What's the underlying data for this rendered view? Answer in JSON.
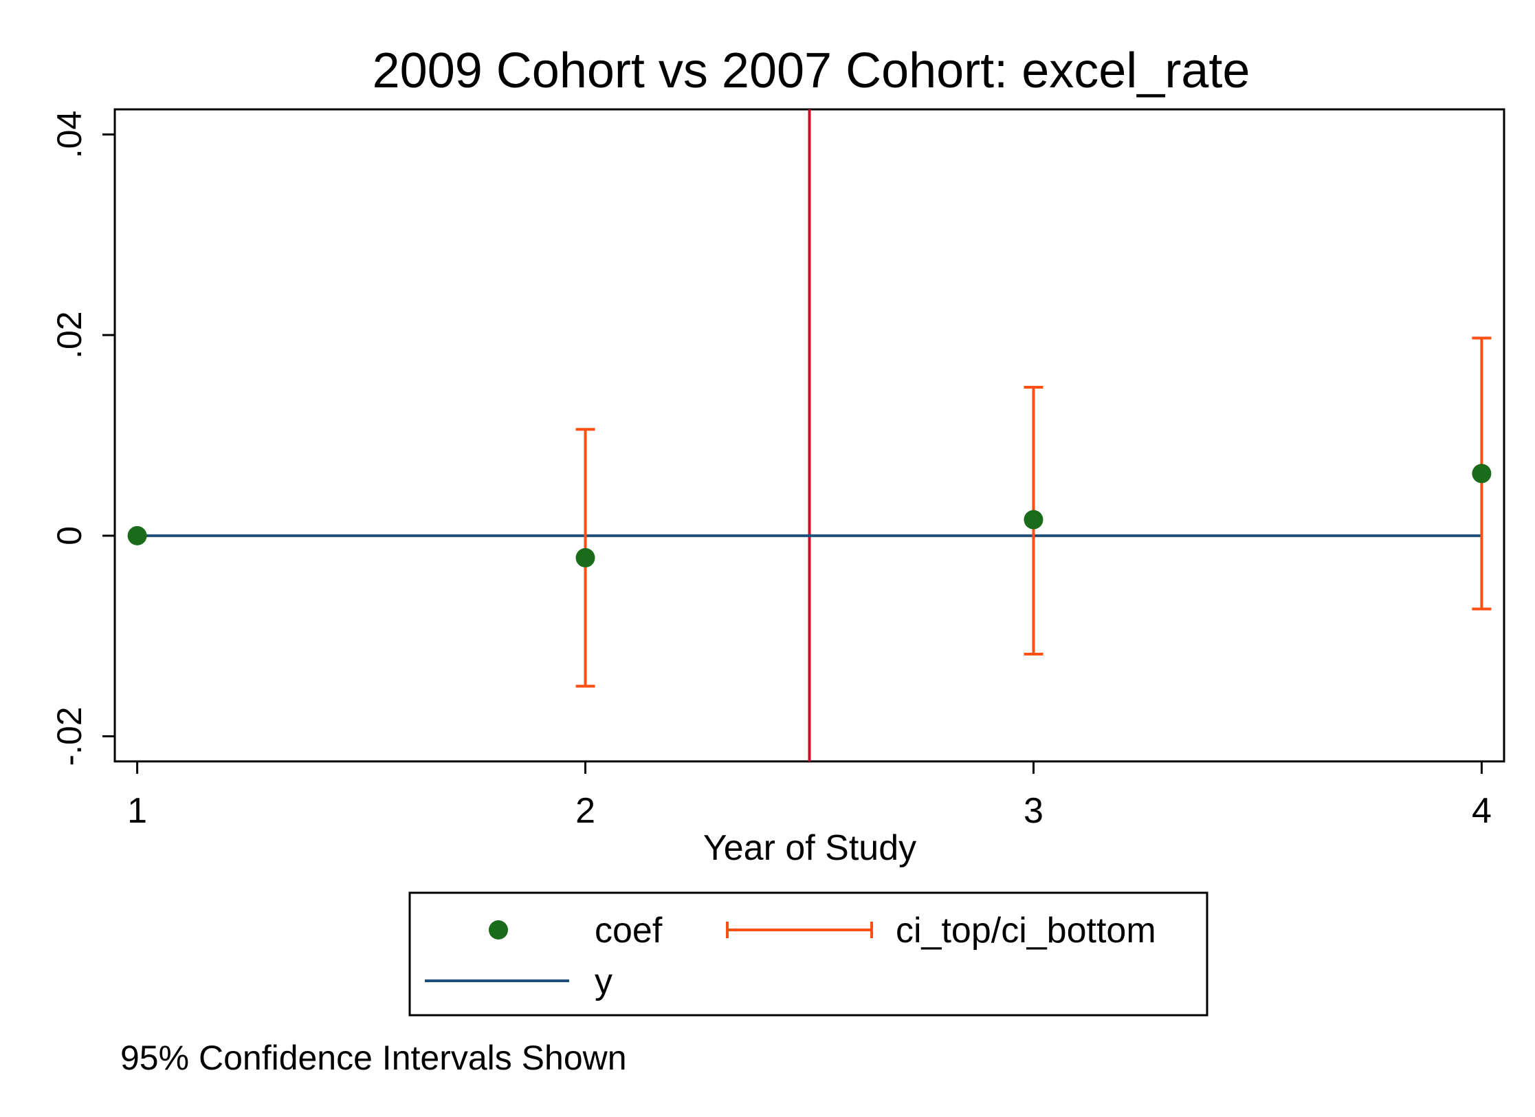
{
  "chart_data": {
    "type": "scatter",
    "title": "2009 Cohort vs 2007 Cohort: excel_rate",
    "xlabel": "Year of Study",
    "ylabel": "",
    "note": "95% Confidence Intervals Shown",
    "xlim": [
      0.95,
      4.05
    ],
    "ylim": [
      -0.0225,
      0.0425
    ],
    "x_ticks": [
      1,
      2,
      3,
      4
    ],
    "x_tick_labels": [
      "1",
      "2",
      "3",
      "4"
    ],
    "y_ticks": [
      -0.02,
      0,
      0.02,
      0.04
    ],
    "y_tick_labels": [
      "-.02",
      "0",
      ".02",
      ".04"
    ],
    "grid": false,
    "legend_position": "bottom",
    "colors": {
      "coef": "#1a6b1a",
      "ci": "#ff4f12",
      "y": "#1f4e79",
      "vline": "#c8102e",
      "axis": "#000000"
    },
    "reference_vline_x": 2.5,
    "series": [
      {
        "name": "coef",
        "kind": "points",
        "x": [
          1,
          2,
          3,
          4
        ],
        "y": [
          0,
          -0.0022,
          0.0016,
          0.0062
        ]
      },
      {
        "name": "ci_top/ci_bottom",
        "kind": "range-cap",
        "x": [
          2,
          3,
          4
        ],
        "top": [
          0.0106,
          0.0148,
          0.0197
        ],
        "bottom": [
          -0.015,
          -0.0118,
          -0.0073
        ]
      },
      {
        "name": "y",
        "kind": "line",
        "x": [
          1,
          4
        ],
        "y": [
          0,
          0
        ]
      }
    ],
    "legend": {
      "entries": [
        "coef",
        "ci_top/ci_bottom",
        "y"
      ]
    }
  }
}
